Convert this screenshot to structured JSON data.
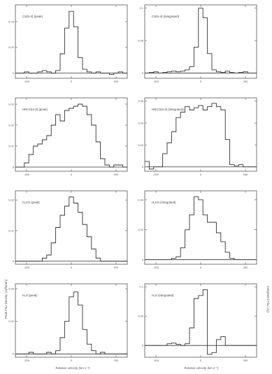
{
  "figure": {
    "ylabel_left": "Peak Flux Density (Jy/beam)",
    "ylabel_right": "Integrated Flux (Jy)",
    "xlabel": "Relative velocity (km s⁻¹)"
  },
  "chart_data": [
    {
      "type": "line",
      "title": "CS(5-4) (peak)",
      "xlim": [
        -250,
        250
      ],
      "ylim": [
        -0.004,
        0.053
      ],
      "xticks": [
        -200,
        0,
        200
      ],
      "xtick_labels": [
        "-200",
        "0",
        "200"
      ],
      "yticks": [
        0,
        0.02,
        0.04
      ],
      "ytick_labels": [
        "0",
        "0.02",
        "0.04"
      ],
      "x": [
        -240,
        -220,
        -200,
        -180,
        -160,
        -140,
        -120,
        -100,
        -80,
        -60,
        -40,
        -20,
        0,
        20,
        40,
        60,
        80,
        100,
        120,
        140,
        160,
        180,
        200,
        220,
        240
      ],
      "y": [
        0,
        0,
        0.001,
        0,
        0,
        0.001,
        0.002,
        0.001,
        0,
        0.002,
        0.015,
        0.035,
        0.048,
        0.036,
        0.012,
        0.003,
        0.001,
        0,
        0.001,
        0,
        0,
        -0.001,
        0,
        0.001,
        0
      ]
    },
    {
      "type": "line",
      "title": "CS(5-4) (integrated)",
      "xlim": [
        -250,
        250
      ],
      "ylim": [
        -0.008,
        0.105
      ],
      "xticks": [
        -200,
        0,
        200
      ],
      "xtick_labels": [
        "-200",
        "0",
        "200"
      ],
      "yticks": [
        0,
        0.05,
        0.1
      ],
      "ytick_labels": [
        "0",
        "0.05",
        "0.1"
      ],
      "x": [
        -240,
        -220,
        -200,
        -180,
        -160,
        -140,
        -120,
        -100,
        -80,
        -60,
        -40,
        -20,
        0,
        20,
        40,
        60,
        80,
        100,
        120,
        140,
        160,
        180,
        200,
        220,
        240
      ],
      "y": [
        0,
        0.001,
        0.002,
        0,
        0.001,
        0.002,
        0.003,
        0.002,
        0.003,
        0.005,
        0.01,
        0.04,
        0.1,
        0.085,
        0.03,
        0.005,
        0.002,
        0.001,
        0.003,
        0.001,
        0,
        0.001,
        0.002,
        0,
        0
      ]
    },
    {
      "type": "line",
      "title": "HNCO(4-3) (peak)",
      "xlim": [
        -250,
        250
      ],
      "ylim": [
        -0.002,
        0.033
      ],
      "xticks": [
        -200,
        0,
        200
      ],
      "xtick_labels": [
        "-200",
        "0",
        "200"
      ],
      "yticks": [
        0,
        0.01,
        0.02,
        0.03
      ],
      "ytick_labels": [
        "0",
        "0.01",
        "0.02",
        "0.03"
      ],
      "x": [
        -240,
        -220,
        -200,
        -180,
        -160,
        -140,
        -120,
        -100,
        -80,
        -60,
        -40,
        -20,
        0,
        20,
        40,
        60,
        80,
        100,
        120,
        140,
        160,
        180,
        200,
        220,
        240
      ],
      "y": [
        0,
        0,
        0.002,
        0.006,
        0.01,
        0.011,
        0.013,
        0.015,
        0.02,
        0.025,
        0.022,
        0.027,
        0.028,
        0.029,
        0.03,
        0.029,
        0.025,
        0.02,
        0.012,
        0.004,
        0.001,
        0,
        0.001,
        0.001,
        0
      ]
    },
    {
      "type": "line",
      "title": "HNCO(4-3) (integrated)",
      "xlim": [
        -250,
        250
      ],
      "ylim": [
        -0.004,
        0.063
      ],
      "xticks": [
        -200,
        0,
        200
      ],
      "xtick_labels": [
        "-200",
        "0",
        "200"
      ],
      "yticks": [
        0,
        0.02,
        0.04,
        0.06
      ],
      "ytick_labels": [
        "0",
        "0.02",
        "0.04",
        "0.06"
      ],
      "x": [
        -240,
        -220,
        -200,
        -180,
        -160,
        -140,
        -120,
        -100,
        -80,
        -60,
        -40,
        -20,
        0,
        20,
        40,
        60,
        80,
        100,
        120,
        140,
        160,
        180,
        200,
        220,
        240
      ],
      "y": [
        0.005,
        -0.002,
        0,
        0,
        0.012,
        0.022,
        0.032,
        0.045,
        0.05,
        0.055,
        0.052,
        0.054,
        0.056,
        0.052,
        0.055,
        0.058,
        0.055,
        0.052,
        0.025,
        0.002,
        0.001,
        0.002,
        0,
        0,
        0
      ]
    },
    {
      "type": "line",
      "title": "H₂CS (peak)",
      "xlim": [
        -250,
        250
      ],
      "ylim": [
        -0.001,
        0.023
      ],
      "xticks": [
        -200,
        0,
        200
      ],
      "xtick_labels": [
        "-200",
        "0",
        "200"
      ],
      "yticks": [
        0,
        0.01,
        0.02
      ],
      "ytick_labels": [
        "0",
        "0.01",
        "0.02"
      ],
      "x": [
        -240,
        -220,
        -200,
        -180,
        -160,
        -140,
        -120,
        -100,
        -80,
        -60,
        -40,
        -20,
        0,
        20,
        40,
        60,
        80,
        100,
        120,
        140,
        160,
        180,
        200,
        220,
        240
      ],
      "y": [
        0,
        0,
        0,
        0,
        0,
        0,
        0.001,
        0.002,
        0.006,
        0.011,
        0.015,
        0.018,
        0.021,
        0.019,
        0.016,
        0.012,
        0.008,
        0.004,
        0.001,
        0,
        0,
        0,
        0,
        0,
        0
      ]
    },
    {
      "type": "line",
      "title": "H₂CS (integrated)",
      "xlim": [
        -250,
        250
      ],
      "ylim": [
        -0.003,
        0.046
      ],
      "xticks": [
        -200,
        0,
        200
      ],
      "xtick_labels": [
        "-200",
        "0",
        "200"
      ],
      "yticks": [
        0,
        0.02,
        0.04
      ],
      "ytick_labels": [
        "0",
        "0.02",
        "0.04"
      ],
      "x": [
        -240,
        -220,
        -200,
        -180,
        -160,
        -140,
        -120,
        -100,
        -80,
        -60,
        -40,
        -20,
        0,
        20,
        40,
        60,
        80,
        100,
        120,
        140,
        160,
        180,
        200,
        220,
        240
      ],
      "y": [
        0,
        0,
        0,
        0,
        0,
        0,
        0.001,
        0.002,
        0.008,
        0.02,
        0.03,
        0.042,
        0.04,
        0.03,
        0.025,
        0.025,
        0.018,
        0.012,
        0.005,
        0.001,
        0,
        0,
        0,
        0,
        0
      ]
    },
    {
      "type": "line",
      "title": "H₂S (peak)",
      "xlim": [
        -250,
        250
      ],
      "ylim": [
        -0.002,
        0.043
      ],
      "xticks": [
        -200,
        0,
        200
      ],
      "xtick_labels": [
        "-200",
        "0",
        "200"
      ],
      "yticks": [
        0,
        0.02,
        0.04
      ],
      "ytick_labels": [
        "0",
        "0.02",
        "0.04"
      ],
      "x": [
        -240,
        -220,
        -200,
        -180,
        -160,
        -140,
        -120,
        -100,
        -80,
        -60,
        -40,
        -20,
        0,
        20,
        40,
        60,
        80,
        100,
        120,
        140,
        160,
        180,
        200,
        220,
        240
      ],
      "y": [
        0,
        0,
        0,
        0.001,
        0,
        0,
        0,
        0.001,
        0,
        0.002,
        0.01,
        0.02,
        0.035,
        0.038,
        0.03,
        0.015,
        0.006,
        0.002,
        0,
        0.001,
        0,
        0,
        0,
        0,
        0
      ]
    },
    {
      "type": "line",
      "title": "H₂S (integrated)",
      "xlim": [
        -250,
        250
      ],
      "ylim": [
        -0.02,
        0.105
      ],
      "xticks": [
        -200,
        0,
        200
      ],
      "xtick_labels": [
        "-200",
        "0",
        "200"
      ],
      "yticks": [
        0,
        0.05,
        0.1
      ],
      "ytick_labels": [
        "0",
        "0.05",
        "0.1"
      ],
      "x": [
        -240,
        -220,
        -200,
        -180,
        -160,
        -140,
        -120,
        -100,
        -80,
        -60,
        -40,
        -20,
        0,
        20,
        40,
        60,
        80,
        100,
        120,
        140,
        160,
        180,
        200,
        220,
        240
      ],
      "y": [
        0,
        0,
        0,
        0,
        0,
        0.003,
        0.004,
        0.002,
        0,
        0.003,
        0.03,
        0.08,
        0.085,
        0.095,
        -0.015,
        -0.012,
        0.01,
        0.015,
        0,
        0,
        0,
        0,
        0,
        0,
        0
      ]
    }
  ]
}
